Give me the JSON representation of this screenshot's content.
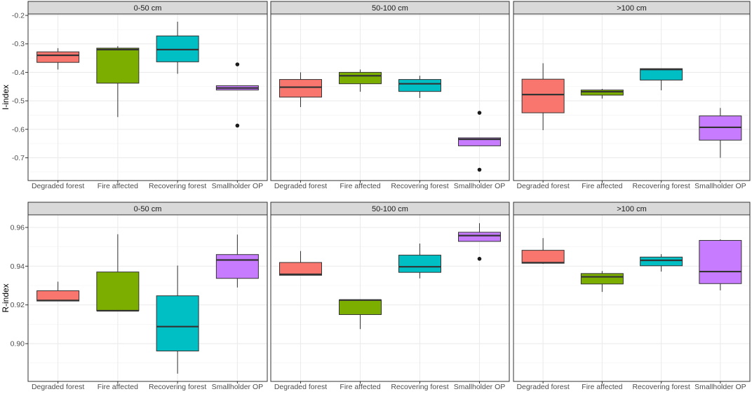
{
  "chart_data": {
    "type": "box",
    "categories": [
      "Degraded forest",
      "Fire affected",
      "Recovering forest",
      "Smallholder OP"
    ],
    "colors": {
      "Degraded forest": "#F8766D",
      "Fire affected": "#7CAE00",
      "Recovering forest": "#00BFC4",
      "Smallholder OP": "#C77CFF"
    },
    "facets": [
      "0-50 cm",
      "50-100 cm",
      ">100 cm"
    ],
    "rows": [
      {
        "ylabel": "I-index",
        "ylim": [
          -0.78,
          -0.195
        ],
        "yticks": [
          -0.2,
          -0.3,
          -0.4,
          -0.5,
          -0.6,
          -0.7
        ],
        "ytick_labels": [
          "-0.2",
          "-0.3",
          "-0.4",
          "-0.5",
          "-0.6",
          "-0.7"
        ],
        "panels": [
          {
            "facet": "0-50 cm",
            "boxes": [
              {
                "category": "Degraded forest",
                "whisker_low": -0.39,
                "q1": -0.365,
                "median": -0.34,
                "q3": -0.328,
                "whisker_high": -0.315,
                "outliers": []
              },
              {
                "category": "Fire affected",
                "whisker_low": -0.557,
                "q1": -0.438,
                "median": -0.32,
                "q3": -0.315,
                "whisker_high": -0.308,
                "outliers": []
              },
              {
                "category": "Recovering forest",
                "whisker_low": -0.405,
                "q1": -0.363,
                "median": -0.32,
                "q3": -0.272,
                "whisker_high": -0.222,
                "outliers": []
              },
              {
                "category": "Smallholder OP",
                "whisker_low": -0.462,
                "q1": -0.462,
                "median": -0.455,
                "q3": -0.447,
                "whisker_high": -0.447,
                "outliers": [
                  -0.372,
                  -0.587
                ]
              }
            ]
          },
          {
            "facet": "50-100 cm",
            "boxes": [
              {
                "category": "Degraded forest",
                "whisker_low": -0.522,
                "q1": -0.487,
                "median": -0.452,
                "q3": -0.425,
                "whisker_high": -0.4,
                "outliers": []
              },
              {
                "category": "Fire affected",
                "whisker_low": -0.468,
                "q1": -0.44,
                "median": -0.412,
                "q3": -0.4,
                "whisker_high": -0.39,
                "outliers": []
              },
              {
                "category": "Recovering forest",
                "whisker_low": -0.49,
                "q1": -0.467,
                "median": -0.44,
                "q3": -0.425,
                "whisker_high": -0.412,
                "outliers": []
              },
              {
                "category": "Smallholder OP",
                "whisker_low": -0.658,
                "q1": -0.658,
                "median": -0.635,
                "q3": -0.63,
                "whisker_high": -0.63,
                "outliers": [
                  -0.542,
                  -0.742
                ]
              }
            ]
          },
          {
            "facet": ">100 cm",
            "boxes": [
              {
                "category": "Degraded forest",
                "whisker_low": -0.603,
                "q1": -0.542,
                "median": -0.478,
                "q3": -0.424,
                "whisker_high": -0.368,
                "outliers": []
              },
              {
                "category": "Fire affected",
                "whisker_low": -0.492,
                "q1": -0.48,
                "median": -0.468,
                "q3": -0.462,
                "whisker_high": -0.458,
                "outliers": []
              },
              {
                "category": "Recovering forest",
                "whisker_low": -0.463,
                "q1": -0.427,
                "median": -0.39,
                "q3": -0.387,
                "whisker_high": -0.387,
                "outliers": []
              },
              {
                "category": "Smallholder OP",
                "whisker_low": -0.7,
                "q1": -0.638,
                "median": -0.593,
                "q3": -0.553,
                "whisker_high": -0.525,
                "outliers": []
              }
            ]
          }
        ]
      },
      {
        "ylabel": "R-index",
        "ylim": [
          0.8805,
          0.9665
        ],
        "yticks": [
          0.96,
          0.94,
          0.92,
          0.9
        ],
        "ytick_labels": [
          "0.96",
          "0.94",
          "0.92",
          "0.90"
        ],
        "panels": [
          {
            "facet": "0-50 cm",
            "boxes": [
              {
                "category": "Degraded forest",
                "whisker_low": 0.922,
                "q1": 0.922,
                "median": 0.9223,
                "q3": 0.9273,
                "whisker_high": 0.932,
                "outliers": []
              },
              {
                "category": "Fire affected",
                "whisker_low": 0.917,
                "q1": 0.917,
                "median": 0.917,
                "q3": 0.937,
                "whisker_high": 0.9565,
                "outliers": []
              },
              {
                "category": "Recovering forest",
                "whisker_low": 0.8845,
                "q1": 0.8962,
                "median": 0.9088,
                "q3": 0.9247,
                "whisker_high": 0.9403,
                "outliers": []
              },
              {
                "category": "Smallholder OP",
                "whisker_low": 0.929,
                "q1": 0.9337,
                "median": 0.9432,
                "q3": 0.946,
                "whisker_high": 0.9563,
                "outliers": []
              }
            ]
          },
          {
            "facet": "50-100 cm",
            "boxes": [
              {
                "category": "Degraded forest",
                "whisker_low": 0.9353,
                "q1": 0.9353,
                "median": 0.9358,
                "q3": 0.9419,
                "whisker_high": 0.9478,
                "outliers": []
              },
              {
                "category": "Fire affected",
                "whisker_low": 0.9075,
                "q1": 0.915,
                "median": 0.9225,
                "q3": 0.9226,
                "whisker_high": 0.9228,
                "outliers": []
              },
              {
                "category": "Recovering forest",
                "whisker_low": 0.9337,
                "q1": 0.9368,
                "median": 0.9397,
                "q3": 0.9457,
                "whisker_high": 0.9517,
                "outliers": []
              },
              {
                "category": "Smallholder OP",
                "whisker_low": 0.9528,
                "q1": 0.9528,
                "median": 0.9558,
                "q3": 0.9575,
                "whisker_high": 0.9622,
                "outliers": [
                  0.9438
                ]
              }
            ]
          },
          {
            "facet": ">100 cm",
            "boxes": [
              {
                "category": "Degraded forest",
                "whisker_low": 0.9412,
                "q1": 0.9415,
                "median": 0.9418,
                "q3": 0.9482,
                "whisker_high": 0.9545,
                "outliers": []
              },
              {
                "category": "Fire affected",
                "whisker_low": 0.9267,
                "q1": 0.9308,
                "median": 0.9345,
                "q3": 0.9362,
                "whisker_high": 0.9375,
                "outliers": []
              },
              {
                "category": "Recovering forest",
                "whisker_low": 0.9372,
                "q1": 0.9402,
                "median": 0.943,
                "q3": 0.9447,
                "whisker_high": 0.9462,
                "outliers": []
              },
              {
                "category": "Smallholder OP",
                "whisker_low": 0.9275,
                "q1": 0.931,
                "median": 0.9372,
                "q3": 0.9533,
                "whisker_high": 0.9538,
                "outliers": []
              }
            ]
          }
        ]
      }
    ],
    "grid": true,
    "legend": "none"
  }
}
